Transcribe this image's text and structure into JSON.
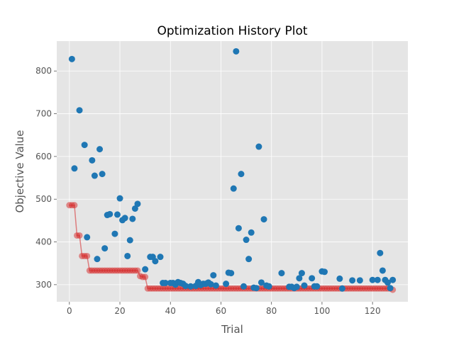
{
  "chart_data": {
    "type": "scatter",
    "title": "Optimization History Plot",
    "xlabel": "Trial",
    "ylabel": "Objective Value",
    "xlim": [
      -5,
      134
    ],
    "ylim": [
      260,
      870
    ],
    "xticks": [
      0,
      20,
      40,
      60,
      80,
      100,
      120
    ],
    "yticks": [
      300,
      400,
      500,
      600,
      700,
      800
    ],
    "grid": true,
    "background": "#e5e5e5",
    "series": [
      {
        "kind": "scatter",
        "color": "#1f77b4",
        "x": [
          1,
          2,
          4,
          6,
          7,
          9,
          10,
          11,
          12,
          13,
          14,
          15,
          16,
          18,
          19,
          20,
          21,
          22,
          23,
          24,
          25,
          26,
          27,
          30,
          32,
          33,
          34,
          36,
          37,
          38,
          40,
          41,
          42,
          43,
          44,
          45,
          46,
          48,
          50,
          51,
          52,
          53,
          54,
          55,
          56,
          57,
          58,
          62,
          63,
          64,
          65,
          66,
          67,
          68,
          69,
          70,
          71,
          72,
          73,
          74,
          75,
          76,
          77,
          78,
          79,
          84,
          87,
          88,
          89,
          90,
          91,
          92,
          93,
          96,
          97,
          98,
          100,
          101,
          107,
          108,
          112,
          115,
          120,
          122,
          123,
          124,
          125,
          126,
          127,
          128
        ],
        "y": [
          828,
          572,
          708,
          627,
          411,
          591,
          555,
          360,
          617,
          559,
          385,
          463,
          465,
          419,
          464,
          502,
          451,
          456,
          367,
          404,
          454,
          478,
          489,
          336,
          365,
          365,
          355,
          365,
          304,
          304,
          304,
          304,
          300,
          306,
          304,
          302,
          297,
          296,
          297,
          306,
          299,
          302,
          302,
          305,
          301,
          322,
          298,
          302,
          328,
          327,
          525,
          846,
          432,
          559,
          296,
          405,
          360,
          422,
          293,
          292,
          623,
          305,
          453,
          298,
          296,
          327,
          295,
          295,
          292,
          295,
          315,
          327,
          298,
          315,
          296,
          296,
          331,
          330,
          314,
          291,
          310,
          310,
          311,
          311,
          374,
          333,
          311,
          305,
          292,
          311
        ]
      },
      {
        "kind": "scatter-line",
        "color": "#d62728",
        "best_values": {
          "x": [
            0,
            1,
            2,
            3,
            4,
            5,
            6,
            7,
            8,
            9,
            10,
            11,
            12,
            13,
            14,
            15,
            16,
            17,
            18,
            19,
            20,
            21,
            22,
            23,
            24,
            25,
            26,
            27,
            28,
            29,
            30,
            31,
            32,
            33,
            34,
            35,
            36,
            37,
            38,
            39,
            40,
            41,
            42,
            43,
            44,
            45,
            46,
            47,
            48,
            49,
            50,
            51,
            52,
            53,
            54,
            55,
            56,
            57,
            58,
            59,
            60,
            61,
            62,
            63,
            64,
            65,
            66,
            67,
            68,
            69,
            70,
            71,
            72,
            73,
            74,
            75,
            76,
            77,
            78,
            79,
            80,
            81,
            82,
            83,
            84,
            85,
            86,
            87,
            88,
            89,
            90,
            91,
            92,
            93,
            94,
            95,
            96,
            97,
            98,
            99,
            100,
            101,
            102,
            103,
            104,
            105,
            106,
            107,
            108,
            109,
            110,
            111,
            112,
            113,
            114,
            115,
            116,
            117,
            118,
            119,
            120,
            121,
            122,
            123,
            124,
            125,
            126,
            127,
            128
          ],
          "y": [
            486,
            486,
            486,
            415,
            415,
            367,
            367,
            367,
            333,
            333,
            333,
            333,
            333,
            333,
            333,
            333,
            333,
            333,
            333,
            333,
            333,
            333,
            333,
            333,
            333,
            333,
            333,
            333,
            320,
            318,
            318,
            291,
            291,
            291,
            291,
            291,
            291,
            291,
            291,
            291,
            291,
            291,
            291,
            291,
            291,
            291,
            291,
            291,
            291,
            291,
            291,
            291,
            291,
            291,
            291,
            291,
            291,
            291,
            291,
            291,
            291,
            291,
            291,
            291,
            291,
            291,
            291,
            291,
            291,
            291,
            291,
            291,
            291,
            291,
            291,
            291,
            291,
            291,
            291,
            291,
            291,
            291,
            291,
            291,
            291,
            291,
            291,
            291,
            291,
            291,
            291,
            291,
            291,
            291,
            291,
            291,
            291,
            291,
            291,
            291,
            291,
            291,
            291,
            291,
            291,
            291,
            291,
            291,
            291,
            291,
            291,
            291,
            291,
            291,
            291,
            291,
            291,
            291,
            291,
            291,
            291,
            291,
            291,
            291,
            291,
            291,
            291,
            291,
            288
          ]
        }
      }
    ]
  }
}
